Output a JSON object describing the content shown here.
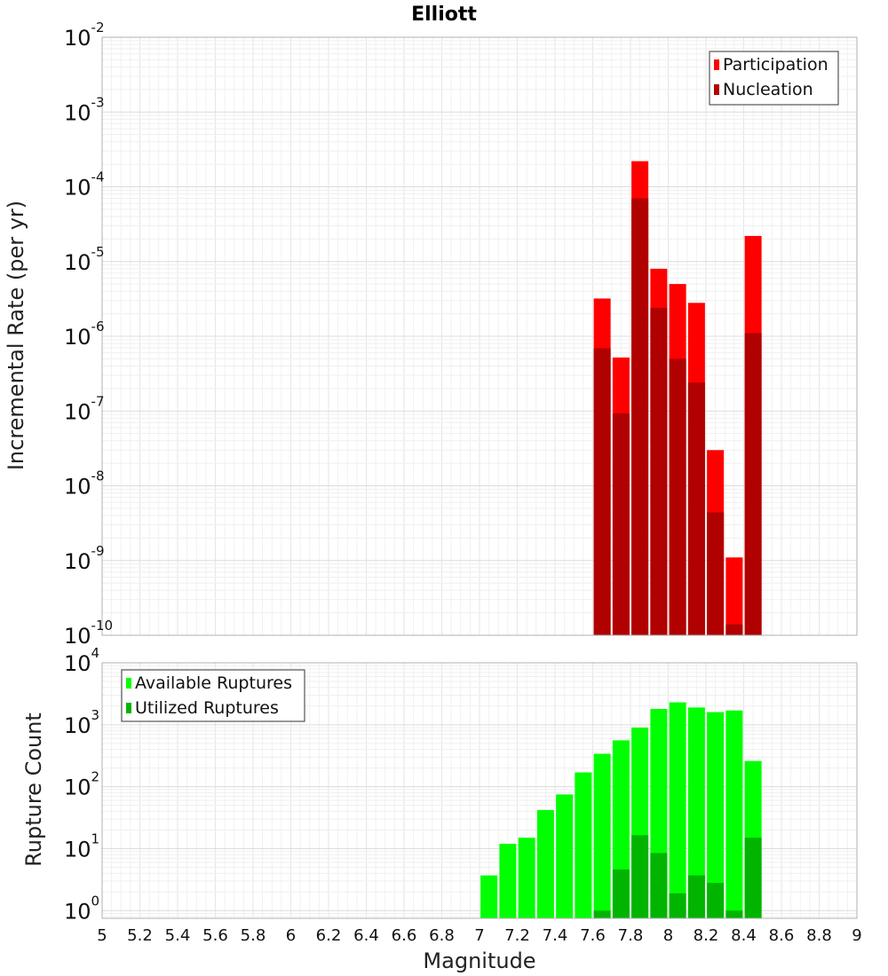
{
  "chart_data": [
    {
      "type": "bar",
      "title": "Elliott",
      "xlabel": "",
      "ylabel": "Incremental Rate (per yr)",
      "xlim": [
        5,
        9
      ],
      "ylim": [
        1e-10,
        0.01
      ],
      "y_scale": "log",
      "grid": true,
      "legend_position": "top-right",
      "x": [
        7.65,
        7.75,
        7.85,
        7.95,
        8.05,
        8.15,
        8.25,
        8.35,
        8.45
      ],
      "series": [
        {
          "name": "Participation",
          "color": "#ff0000",
          "values": [
            3.2e-06,
            5.2e-07,
            0.00022,
            8e-06,
            5e-06,
            2.8e-06,
            3e-08,
            1.1e-09,
            2.2e-05
          ]
        },
        {
          "name": "Nucleation",
          "color": "#b00000",
          "values": [
            6.9e-07,
            9.3e-08,
            7e-05,
            2.4e-06,
            5e-07,
            2.4e-07,
            4.4e-09,
            1.4e-10,
            1.1e-06
          ]
        }
      ],
      "ytick_labels": [
        {
          "base": "10",
          "exp": "-10"
        },
        {
          "base": "10",
          "exp": "-9"
        },
        {
          "base": "10",
          "exp": "-8"
        },
        {
          "base": "10",
          "exp": "-7"
        },
        {
          "base": "10",
          "exp": "-6"
        },
        {
          "base": "10",
          "exp": "-5"
        },
        {
          "base": "10",
          "exp": "-4"
        },
        {
          "base": "10",
          "exp": "-3"
        },
        {
          "base": "10",
          "exp": "-2"
        }
      ]
    },
    {
      "type": "bar",
      "xlabel": "Magnitude",
      "ylabel": "Rupture Count",
      "xlim": [
        5,
        9
      ],
      "ylim": [
        0.75,
        10000
      ],
      "y_scale": "log",
      "grid": true,
      "legend_position": "top-left",
      "x": [
        7.05,
        7.15,
        7.25,
        7.35,
        7.45,
        7.55,
        7.65,
        7.75,
        7.85,
        7.95,
        8.05,
        8.15,
        8.25,
        8.35,
        8.45
      ],
      "series": [
        {
          "name": "Available Ruptures",
          "color": "#00ff00",
          "values": [
            3.7,
            12,
            15,
            42,
            75,
            170,
            340,
            560,
            900,
            1800,
            2300,
            1900,
            1600,
            1700,
            260
          ]
        },
        {
          "name": "Utilized Ruptures",
          "color": "#00b400",
          "values": [
            0,
            0,
            0,
            0,
            0,
            0,
            1,
            4.6,
            16.5,
            8.5,
            1.9,
            3.7,
            2.8,
            1,
            15
          ]
        }
      ],
      "ytick_labels": [
        {
          "base": "10",
          "exp": "0"
        },
        {
          "base": "10",
          "exp": "1"
        },
        {
          "base": "10",
          "exp": "2"
        },
        {
          "base": "10",
          "exp": "3"
        },
        {
          "base": "10",
          "exp": "4"
        }
      ],
      "xtick_labels": [
        "5",
        "5.2",
        "5.4",
        "5.6",
        "5.8",
        "6",
        "6.2",
        "6.4",
        "6.6",
        "6.8",
        "7",
        "7.2",
        "7.4",
        "7.6",
        "7.8",
        "8",
        "8.2",
        "8.4",
        "8.6",
        "8.8",
        "9"
      ]
    }
  ]
}
